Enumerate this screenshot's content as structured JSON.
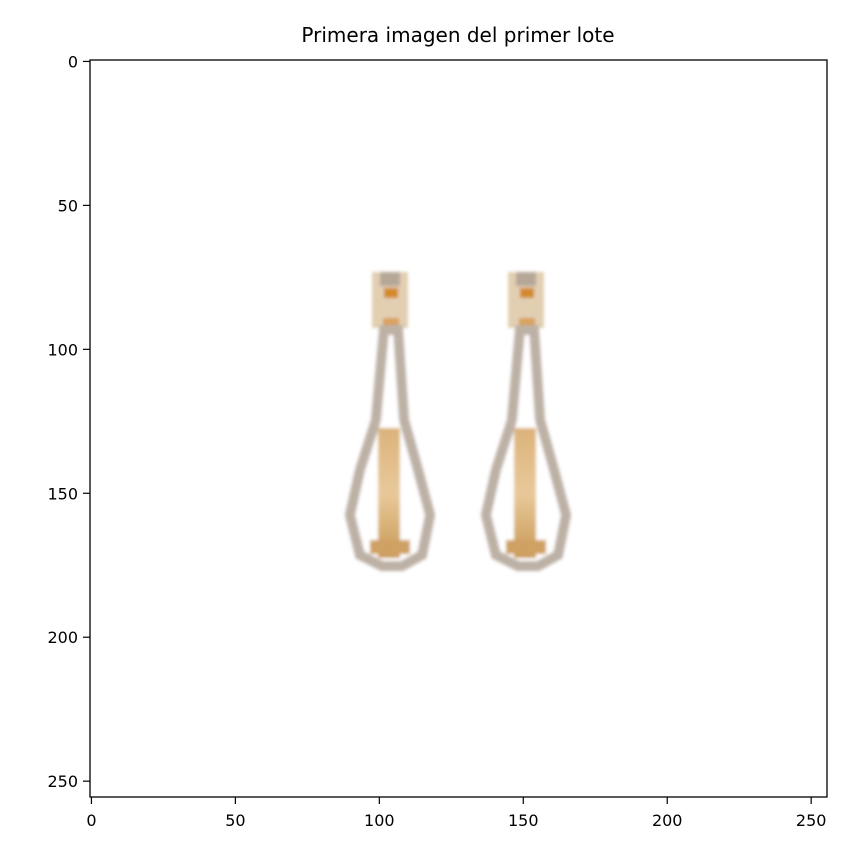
{
  "chart_data": {
    "type": "heatmap",
    "title": "Primera imagen del primer lote",
    "xlabel": "",
    "ylabel": "",
    "xlim": [
      -0.5,
      255.5
    ],
    "ylim": [
      255.5,
      -0.5
    ],
    "x_ticks": [
      0,
      50,
      100,
      150,
      200,
      250
    ],
    "y_ticks": [
      0,
      50,
      100,
      150,
      200,
      250
    ],
    "grid": false,
    "image_content": "two drop earrings on a white background"
  }
}
